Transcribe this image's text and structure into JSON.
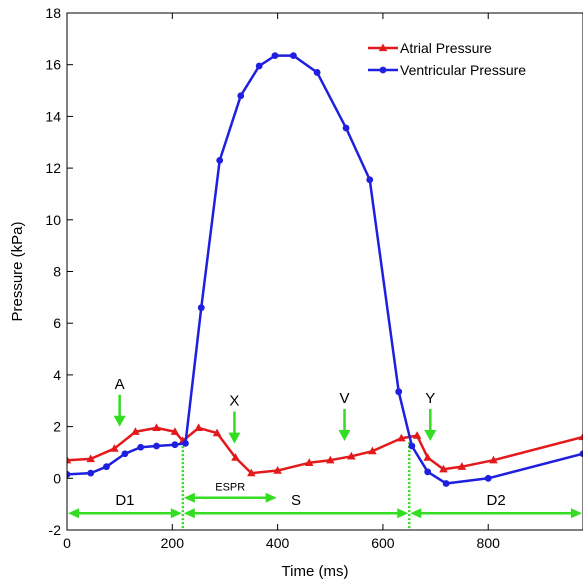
{
  "chart_data": {
    "type": "line",
    "xlabel": "Time (ms)",
    "ylabel": "Pressure (kPa)",
    "xlim": [
      0,
      980
    ],
    "ylim": [
      -2,
      18
    ],
    "xticks": [
      0,
      200,
      400,
      600,
      800
    ],
    "yticks": [
      -2,
      0,
      2,
      4,
      6,
      8,
      10,
      12,
      14,
      16,
      18
    ],
    "legend_position": "top-right",
    "series": [
      {
        "name": "Atrial Pressure",
        "color": "#e31a1c",
        "marker": "triangle",
        "x": [
          0,
          45,
          90,
          130,
          170,
          205,
          220,
          250,
          285,
          320,
          350,
          400,
          460,
          500,
          540,
          580,
          635,
          665,
          685,
          715,
          750,
          810,
          980
        ],
        "y": [
          0.7,
          0.75,
          1.15,
          1.8,
          1.95,
          1.8,
          1.45,
          1.95,
          1.75,
          0.8,
          0.2,
          0.3,
          0.6,
          0.7,
          0.85,
          1.05,
          1.55,
          1.65,
          0.8,
          0.35,
          0.45,
          0.7,
          1.6
        ]
      },
      {
        "name": "Ventricular Pressure",
        "color": "#1f1fe0",
        "marker": "circle",
        "x": [
          0,
          45,
          75,
          110,
          140,
          170,
          205,
          225,
          255,
          290,
          330,
          365,
          395,
          430,
          475,
          530,
          575,
          630,
          655,
          685,
          720,
          800,
          980
        ],
        "y": [
          0.15,
          0.2,
          0.45,
          0.95,
          1.2,
          1.25,
          1.3,
          1.35,
          6.6,
          12.3,
          14.8,
          15.95,
          16.35,
          16.35,
          15.7,
          13.55,
          11.55,
          3.35,
          1.25,
          0.25,
          -0.2,
          0.0,
          0.95
        ]
      }
    ],
    "annotations": {
      "arrows": [
        {
          "label": "A",
          "x": 100,
          "y": 1.8
        },
        {
          "label": "X",
          "x": 318,
          "y": 1.15
        },
        {
          "label": "V",
          "x": 527,
          "y": 1.25
        },
        {
          "label": "Y",
          "x": 690,
          "y": 1.25
        }
      ],
      "dividers": [
        220,
        650
      ],
      "intervals": [
        {
          "label": "D1",
          "from": 0,
          "to": 220,
          "y": -1.35
        },
        {
          "label": "S",
          "from": 220,
          "to": 650,
          "y": -1.35
        },
        {
          "label": "D2",
          "from": 650,
          "to": 980,
          "y": -1.35
        },
        {
          "label": "ESPR",
          "from": 220,
          "to": 400,
          "y": -0.75
        }
      ],
      "annotation_color": "#33dd22"
    }
  }
}
